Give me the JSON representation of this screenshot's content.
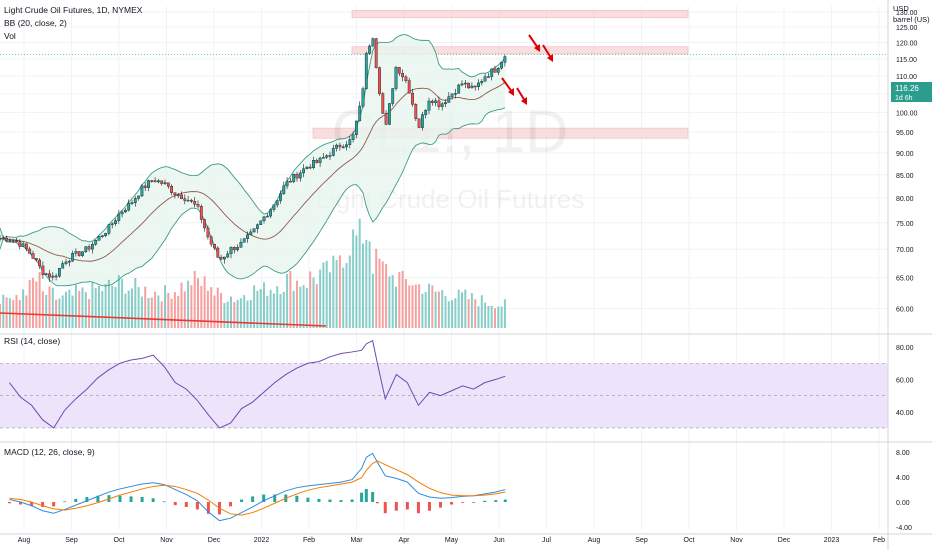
{
  "legend": {
    "title": "Light Crude Oil Futures, 1D, NYMEX",
    "bb": "BB (20, close, 2)",
    "vol": "Vol",
    "rsi": "RSI (14, close)",
    "macd": "MACD (12, 26, close, 9)"
  },
  "watermark": {
    "symbol": "CL1!, 1D",
    "name": "Light Crude Oil Futures"
  },
  "axis": {
    "currency": "USD",
    "unit": "barrel (US)",
    "price_ticks": [
      "130.00",
      "125.00",
      "120.00",
      "115.00",
      "110.00",
      "105.00",
      "100.00",
      "95.00",
      "90.00",
      "85.00",
      "80.00",
      "75.00",
      "70.00",
      "65.00",
      "60.00"
    ],
    "rsi_ticks": [
      "80.00",
      "60.00",
      "40.00"
    ],
    "macd_ticks": [
      "8.00",
      "4.00",
      "0.00",
      "-4.00"
    ],
    "x_labels": [
      "Aug",
      "Sep",
      "Oct",
      "Nov",
      "Dec",
      "2022",
      "Feb",
      "Mar",
      "Apr",
      "May",
      "Jun",
      "Jul",
      "Aug",
      "Sep",
      "Oct",
      "Nov",
      "Dec",
      "2023",
      "Feb"
    ]
  },
  "last_price": {
    "price": "116.26",
    "countdown": "1d 6h"
  },
  "colors": {
    "up": "#26a69a",
    "down": "#ef5350",
    "bb_fill": "#e7f5ee",
    "bb_band": "#3d9b86",
    "basis": "#8d5c4e",
    "rsi": "#6a4cae",
    "rsi_band": "#ede4fb",
    "macd": "#2f8ddd",
    "signal": "#f57c00",
    "zone": "#f6d3d3",
    "arrow": "#e00000",
    "trendline": "#e53935"
  },
  "chart_data": [
    {
      "type": "candlestick",
      "title": "Light Crude Oil Futures, 1D, NYMEX",
      "ylabel": "USD barrel (US)",
      "ylim": [
        57,
        132
      ],
      "y_scale": "log",
      "overlays": [
        "Bollinger Bands (20, close, 2)"
      ],
      "x": [
        "2021-07-21",
        "2021-07-28",
        "2021-08-04",
        "2021-08-11",
        "2021-08-18",
        "2021-08-25",
        "2021-09-01",
        "2021-09-08",
        "2021-09-15",
        "2021-09-22",
        "2021-09-29",
        "2021-10-06",
        "2021-10-13",
        "2021-10-20",
        "2021-10-27",
        "2021-11-03",
        "2021-11-10",
        "2021-11-17",
        "2021-11-24",
        "2021-12-01",
        "2021-12-08",
        "2021-12-15",
        "2021-12-22",
        "2021-12-29",
        "2022-01-05",
        "2022-01-12",
        "2022-01-19",
        "2022-01-26",
        "2022-02-02",
        "2022-02-09",
        "2022-02-16",
        "2022-02-23",
        "2022-03-01",
        "2022-03-04",
        "2022-03-08",
        "2022-03-11",
        "2022-03-16",
        "2022-03-23",
        "2022-03-30",
        "2022-04-06",
        "2022-04-13",
        "2022-04-20",
        "2022-04-27",
        "2022-05-04",
        "2022-05-11",
        "2022-05-18",
        "2022-05-25",
        "2022-05-31"
      ],
      "close": [
        72,
        71,
        69,
        66,
        65,
        68,
        69,
        70,
        72,
        74,
        77,
        79,
        82,
        84,
        83,
        81,
        80,
        78,
        72,
        68,
        70,
        71,
        73,
        76,
        79,
        83,
        85,
        87,
        88,
        90,
        92,
        93,
        103,
        116,
        123,
        110,
        95,
        113,
        108,
        96,
        104,
        102,
        105,
        108,
        106,
        110,
        112,
        116.26
      ],
      "annotations": [
        "resistance zone ~128-130",
        "resistance zone ~116.5-118.5",
        "support zone ~93.5-96",
        "trendline",
        "expected down move arrows"
      ],
      "last_value": 116.26
    },
    {
      "type": "bar",
      "title": "Vol",
      "note": "volume histogram, relative heights",
      "values": [
        30,
        26,
        38,
        44,
        32,
        28,
        30,
        33,
        35,
        37,
        40,
        42,
        38,
        36,
        34,
        33,
        36,
        40,
        45,
        42,
        32,
        30,
        28,
        34,
        36,
        38,
        42,
        46,
        44,
        48,
        52,
        56,
        72,
        84,
        90,
        62,
        55,
        48,
        44,
        40,
        36,
        34,
        32,
        30,
        28,
        26,
        24,
        22
      ]
    },
    {
      "type": "line",
      "title": "RSI (14, close)",
      "ylim": [
        25,
        85
      ],
      "band": [
        30,
        70
      ],
      "values": [
        58,
        49,
        44,
        35,
        30,
        41,
        48,
        54,
        61,
        66,
        70,
        72,
        73,
        75,
        68,
        58,
        54,
        47,
        38,
        30,
        33,
        42,
        46,
        52,
        58,
        63,
        67,
        70,
        71,
        74,
        76,
        77,
        78,
        82,
        84,
        70,
        48,
        63,
        58,
        44,
        52,
        50,
        53,
        56,
        54,
        58,
        60,
        62
      ]
    },
    {
      "type": "line",
      "title": "MACD (12, 26, close, 9)",
      "ylim": [
        -4.5,
        9
      ],
      "series": [
        {
          "values": [
            0.4,
            0.0,
            -0.6,
            -1.4,
            -1.8,
            -1.2,
            -0.5,
            0.2,
            0.9,
            1.6,
            2.1,
            2.5,
            2.9,
            3.1,
            2.8,
            2.0,
            1.2,
            0.2,
            -1.6,
            -3.0,
            -2.6,
            -1.7,
            -0.8,
            0.2,
            1.0,
            1.8,
            2.3,
            2.6,
            2.8,
            3.0,
            3.2,
            3.6,
            5.4,
            7.2,
            7.8,
            6.4,
            4.2,
            3.8,
            3.2,
            1.4,
            0.8,
            0.6,
            0.7,
            0.9,
            1.0,
            1.3,
            1.6,
            2.0
          ]
        },
        {
          "values": [
            0.6,
            0.4,
            0.0,
            -0.6,
            -1.1,
            -1.3,
            -1.0,
            -0.6,
            -0.1,
            0.5,
            1.1,
            1.6,
            2.1,
            2.5,
            2.7,
            2.5,
            2.0,
            1.4,
            0.3,
            -1.0,
            -1.9,
            -2.1,
            -1.7,
            -1.0,
            -0.2,
            0.6,
            1.3,
            1.9,
            2.3,
            2.6,
            2.9,
            3.2,
            3.9,
            5.1,
            6.2,
            6.6,
            6.0,
            5.2,
            4.4,
            3.2,
            2.2,
            1.5,
            1.1,
            1.0,
            1.0,
            1.1,
            1.3,
            1.6
          ]
        }
      ],
      "histogram": [
        -0.2,
        -0.4,
        -0.6,
        -0.8,
        -0.7,
        0.1,
        0.5,
        0.8,
        1.0,
        1.1,
        1.0,
        0.9,
        0.8,
        0.6,
        0.1,
        -0.5,
        -0.8,
        -1.2,
        -1.9,
        -2.0,
        -0.7,
        0.4,
        0.9,
        1.2,
        1.2,
        1.2,
        1.0,
        0.7,
        0.5,
        0.4,
        0.3,
        0.4,
        1.5,
        2.1,
        1.6,
        -0.2,
        -1.8,
        -1.4,
        -1.2,
        -1.8,
        -1.4,
        -0.9,
        -0.4,
        -0.1,
        0.0,
        0.2,
        0.3,
        0.4
      ]
    }
  ]
}
